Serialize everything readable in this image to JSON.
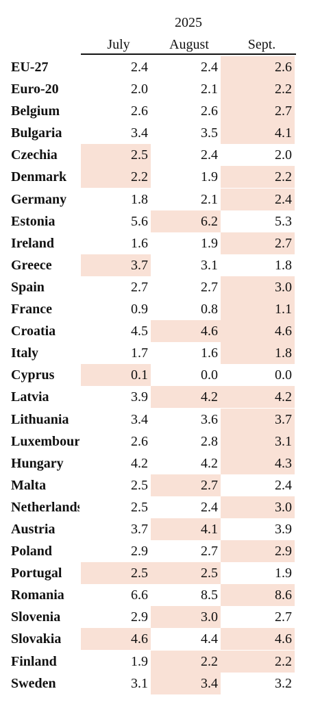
{
  "header": {
    "year": "2025",
    "columns": [
      "July",
      "August",
      "Sept."
    ]
  },
  "highlight_color": "#f9e1d6",
  "rows": [
    {
      "country": "EU-27",
      "values": [
        "2.4",
        "2.4",
        "2.6"
      ],
      "highlight": [
        false,
        false,
        true
      ]
    },
    {
      "country": "Euro-20",
      "values": [
        "2.0",
        "2.1",
        "2.2"
      ],
      "highlight": [
        false,
        false,
        true
      ]
    },
    {
      "country": "Belgium",
      "values": [
        "2.6",
        "2.6",
        "2.7"
      ],
      "highlight": [
        false,
        false,
        true
      ]
    },
    {
      "country": "Bulgaria",
      "values": [
        "3.4",
        "3.5",
        "4.1"
      ],
      "highlight": [
        false,
        false,
        true
      ]
    },
    {
      "country": "Czechia",
      "values": [
        "2.5",
        "2.4",
        "2.0"
      ],
      "highlight": [
        true,
        false,
        false
      ]
    },
    {
      "country": "Denmark",
      "values": [
        "2.2",
        "1.9",
        "2.2"
      ],
      "highlight": [
        true,
        false,
        true
      ]
    },
    {
      "country": "Germany",
      "values": [
        "1.8",
        "2.1",
        "2.4"
      ],
      "highlight": [
        false,
        false,
        true
      ]
    },
    {
      "country": "Estonia",
      "values": [
        "5.6",
        "6.2",
        "5.3"
      ],
      "highlight": [
        false,
        true,
        false
      ]
    },
    {
      "country": "Ireland",
      "values": [
        "1.6",
        "1.9",
        "2.7"
      ],
      "highlight": [
        false,
        false,
        true
      ]
    },
    {
      "country": "Greece",
      "values": [
        "3.7",
        "3.1",
        "1.8"
      ],
      "highlight": [
        true,
        false,
        false
      ]
    },
    {
      "country": "Spain",
      "values": [
        "2.7",
        "2.7",
        "3.0"
      ],
      "highlight": [
        false,
        false,
        true
      ]
    },
    {
      "country": "France",
      "values": [
        "0.9",
        "0.8",
        "1.1"
      ],
      "highlight": [
        false,
        false,
        true
      ]
    },
    {
      "country": "Croatia",
      "values": [
        "4.5",
        "4.6",
        "4.6"
      ],
      "highlight": [
        false,
        true,
        true
      ]
    },
    {
      "country": "Italy",
      "values": [
        "1.7",
        "1.6",
        "1.8"
      ],
      "highlight": [
        false,
        false,
        true
      ]
    },
    {
      "country": "Cyprus",
      "values": [
        "0.1",
        "0.0",
        "0.0"
      ],
      "highlight": [
        true,
        false,
        false
      ]
    },
    {
      "country": "Latvia",
      "values": [
        "3.9",
        "4.2",
        "4.2"
      ],
      "highlight": [
        false,
        true,
        true
      ]
    },
    {
      "country": "Lithuania",
      "values": [
        "3.4",
        "3.6",
        "3.7"
      ],
      "highlight": [
        false,
        false,
        true
      ]
    },
    {
      "country": "Luxembourg",
      "values": [
        "2.6",
        "2.8",
        "3.1"
      ],
      "highlight": [
        false,
        false,
        true
      ]
    },
    {
      "country": "Hungary",
      "values": [
        "4.2",
        "4.2",
        "4.3"
      ],
      "highlight": [
        false,
        false,
        true
      ]
    },
    {
      "country": "Malta",
      "values": [
        "2.5",
        "2.7",
        "2.4"
      ],
      "highlight": [
        false,
        true,
        false
      ]
    },
    {
      "country": "Netherlands",
      "values": [
        "2.5",
        "2.4",
        "3.0"
      ],
      "highlight": [
        false,
        false,
        true
      ]
    },
    {
      "country": "Austria",
      "values": [
        "3.7",
        "4.1",
        "3.9"
      ],
      "highlight": [
        false,
        true,
        false
      ]
    },
    {
      "country": "Poland",
      "values": [
        "2.9",
        "2.7",
        "2.9"
      ],
      "highlight": [
        false,
        false,
        true
      ]
    },
    {
      "country": "Portugal",
      "values": [
        "2.5",
        "2.5",
        "1.9"
      ],
      "highlight": [
        true,
        true,
        false
      ]
    },
    {
      "country": "Romania",
      "values": [
        "6.6",
        "8.5",
        "8.6"
      ],
      "highlight": [
        false,
        false,
        true
      ]
    },
    {
      "country": "Slovenia",
      "values": [
        "2.9",
        "3.0",
        "2.7"
      ],
      "highlight": [
        false,
        true,
        false
      ]
    },
    {
      "country": "Slovakia",
      "values": [
        "4.6",
        "4.4",
        "4.6"
      ],
      "highlight": [
        true,
        false,
        true
      ]
    },
    {
      "country": "Finland",
      "values": [
        "1.9",
        "2.2",
        "2.2"
      ],
      "highlight": [
        false,
        true,
        true
      ]
    },
    {
      "country": "Sweden",
      "values": [
        "3.1",
        "3.4",
        "3.2"
      ],
      "highlight": [
        false,
        true,
        false
      ]
    }
  ]
}
